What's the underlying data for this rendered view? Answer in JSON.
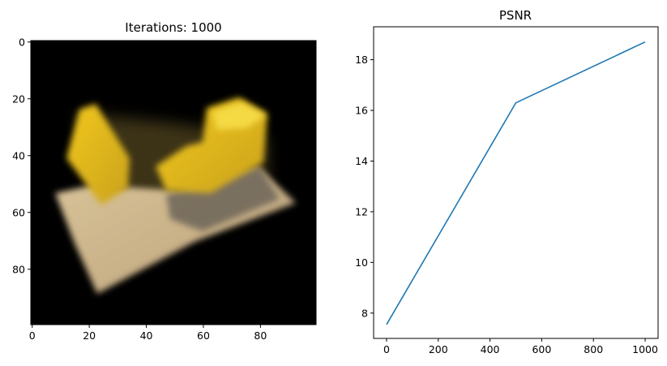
{
  "chart_data": [
    {
      "type": "image",
      "title": "Iterations: 1000",
      "xlim": [
        -0.5,
        99.5
      ],
      "ylim": [
        99.5,
        -0.5
      ],
      "xticks": [
        0,
        20,
        40,
        60,
        80
      ],
      "yticks": [
        0,
        20,
        40,
        60,
        80
      ],
      "xtick_labels": [
        "0",
        "20",
        "40",
        "60",
        "80"
      ],
      "ytick_labels": [
        "0",
        "20",
        "40",
        "60",
        "80"
      ],
      "background_color": "#000000"
    },
    {
      "type": "line",
      "title": "PSNR",
      "x": [
        0,
        500,
        1000
      ],
      "series": [
        {
          "values": [
            7.55,
            16.3,
            18.7
          ],
          "color": "#1f77b4"
        }
      ],
      "xlim": [
        -50,
        1050
      ],
      "ylim": [
        7.0,
        19.3
      ],
      "xticks": [
        0,
        200,
        400,
        600,
        800,
        1000
      ],
      "yticks": [
        8,
        10,
        12,
        14,
        16,
        18
      ],
      "xtick_labels": [
        "0",
        "200",
        "400",
        "600",
        "800",
        "1000"
      ],
      "ytick_labels": [
        "8",
        "10",
        "12",
        "14",
        "16",
        "18"
      ],
      "grid": false
    }
  ]
}
